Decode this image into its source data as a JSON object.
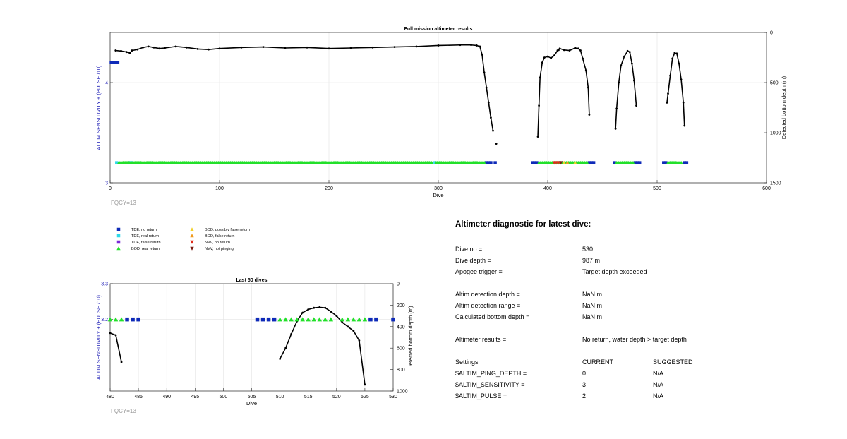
{
  "chart_data": [
    {
      "type": "scatter",
      "title": "Full mission altimeter results",
      "xlabel": "Dive",
      "ylabel": "ALTIM SENSITIVITY + (PULSE /10)",
      "y2label": "Detected bottom depth (m)",
      "xlim": [
        0,
        600
      ],
      "ylim": [
        3,
        4.5
      ],
      "y2lim": [
        1500,
        0
      ],
      "y2_reversed": true,
      "xticks": [
        "0",
        "100",
        "200",
        "300",
        "400",
        "500",
        "600"
      ],
      "yticks": [
        "3",
        "4"
      ],
      "y2ticks": [
        "0",
        "500",
        "1000",
        "1500"
      ],
      "grid": true,
      "annotation": "FQCY=13",
      "colors": {
        "ylabel": "#1a1ab4",
        "tde_no": "#0e2ab8",
        "tde_real": "#2fd8e8",
        "tde_false": "#7a2ad8",
        "bod_real": "#22e02a",
        "bod_possibly": "#f2d02a",
        "bod_false": "#f09a1e",
        "nvv_no": "#e02a1a",
        "nvv_not": "#7a1a10",
        "depth": "#000000"
      },
      "sensitivity_series": [
        {
          "name": "TDE, no return",
          "x": [
            1,
            2,
            3,
            4,
            5,
            6,
            7,
            344,
            346,
            348,
            352,
            386,
            388,
            390,
            438,
            440,
            442,
            461,
            480,
            482,
            484,
            506,
            508,
            525,
            527
          ],
          "y": [
            4.2,
            4.2,
            4.2,
            4.2,
            4.2,
            4.2,
            4.2,
            3.2,
            3.2,
            3.2,
            3.2,
            3.2,
            3.2,
            3.2,
            3.2,
            3.2,
            3.2,
            3.2,
            3.2,
            3.2,
            3.2,
            3.2,
            3.2,
            3.2,
            3.2
          ]
        },
        {
          "name": "TDE, real return",
          "x": [
            6,
            18,
            20,
            297
          ],
          "y": [
            3.2,
            3.2,
            3.2,
            3.2
          ]
        },
        {
          "name": "BOD, real return",
          "x_ranges": [
            [
              8,
              294
            ],
            [
              298,
              342
            ],
            [
              392,
              436
            ],
            [
              463,
              478
            ],
            [
              510,
              522
            ]
          ],
          "y": 3.2
        },
        {
          "name": "BOD, possibly false return",
          "x": [
            415,
            425
          ],
          "y": [
            3.2,
            3.2
          ]
        },
        {
          "name": "BOD, false return",
          "x": [
            418
          ],
          "y": [
            3.2
          ]
        },
        {
          "name": "NVV, no return",
          "x": [
            406,
            408,
            410
          ],
          "y": [
            3.2,
            3.2,
            3.2
          ]
        },
        {
          "name": "NVV, not pinging",
          "x": [
            412
          ],
          "y": [
            3.2
          ]
        }
      ],
      "depth_series": [
        {
          "name": "Detected bottom depth",
          "x": [
            5,
            10,
            15,
            18,
            20,
            25,
            30,
            35,
            40,
            45,
            50,
            60,
            70,
            80,
            90,
            100,
            120,
            140,
            160,
            180,
            200,
            220,
            240,
            260,
            280,
            300,
            320,
            330,
            335,
            338,
            340,
            342,
            344,
            346,
            348,
            350
          ],
          "y": [
            180,
            185,
            195,
            205,
            180,
            170,
            150,
            140,
            150,
            160,
            155,
            140,
            150,
            165,
            170,
            160,
            150,
            145,
            155,
            150,
            160,
            155,
            150,
            145,
            140,
            130,
            125,
            125,
            130,
            140,
            220,
            400,
            550,
            700,
            850,
            980
          ]
        },
        {
          "name": "Detected bottom depth",
          "x": [
            353
          ],
          "y": [
            1110
          ]
        },
        {
          "name": "Detected bottom depth",
          "x": [
            391,
            392,
            393,
            395,
            397,
            400,
            403,
            406,
            409,
            410
          ],
          "y": [
            1040,
            730,
            450,
            300,
            250,
            240,
            255,
            230,
            180,
            175
          ]
        },
        {
          "name": "Detected bottom depth",
          "x": [
            411,
            415,
            420,
            425,
            428,
            430,
            432,
            435,
            437,
            438
          ],
          "y": [
            160,
            175,
            180,
            155,
            160,
            180,
            260,
            380,
            550,
            820
          ]
        },
        {
          "name": "Detected bottom depth",
          "x": [
            462,
            463,
            465,
            467,
            470,
            473,
            475,
            477,
            479,
            481
          ],
          "y": [
            960,
            760,
            500,
            330,
            240,
            185,
            195,
            310,
            480,
            730
          ]
        },
        {
          "name": "Detected bottom depth",
          "x": [
            509,
            510,
            512,
            514,
            516,
            518,
            520,
            522,
            524,
            525
          ],
          "y": [
            700,
            610,
            430,
            260,
            205,
            210,
            310,
            470,
            700,
            930
          ]
        }
      ]
    },
    {
      "type": "scatter",
      "title": "Last 50 dives",
      "xlabel": "Dive",
      "ylabel": "ALTIM SENSITIVITY + (PULSE /10)",
      "y2label": "Detected bottom depth (m)",
      "xlim": [
        480,
        530
      ],
      "ylim": [
        3,
        3.3
      ],
      "y2lim": [
        1000,
        0
      ],
      "y2_reversed": true,
      "xticks": [
        "480",
        "485",
        "490",
        "495",
        "500",
        "505",
        "510",
        "515",
        "520",
        "525",
        "530"
      ],
      "yticks": [
        "3.2",
        "3.3"
      ],
      "y2ticks": [
        "0",
        "200",
        "400",
        "600",
        "800",
        "1000"
      ],
      "grid": true,
      "annotation": "FQCY=13",
      "sensitivity_series": [
        {
          "name": "TDE, no return",
          "x": [
            483,
            484,
            485,
            506,
            507,
            508,
            509,
            526,
            527,
            530
          ],
          "y": [
            3.2,
            3.2,
            3.2,
            3.2,
            3.2,
            3.2,
            3.2,
            3.2,
            3.2,
            3.2
          ]
        },
        {
          "name": "BOD, real return",
          "x": [
            480,
            481,
            482,
            510,
            511,
            512,
            513,
            514,
            515,
            516,
            517,
            518,
            519,
            521,
            522,
            523,
            524,
            525
          ],
          "y": [
            3.2,
            3.2,
            3.2,
            3.2,
            3.2,
            3.2,
            3.2,
            3.2,
            3.2,
            3.2,
            3.2,
            3.2,
            3.2,
            3.2,
            3.2,
            3.2,
            3.2,
            3.2
          ]
        }
      ],
      "depth_series": [
        {
          "name": "Detected bottom depth",
          "x": [
            480,
            481,
            482
          ],
          "y": [
            460,
            480,
            730
          ]
        },
        {
          "name": "Detected bottom depth",
          "x": [
            510,
            511,
            512,
            513,
            514,
            515,
            516,
            517,
            518,
            519,
            520,
            521,
            522,
            523,
            524,
            525
          ],
          "y": [
            700,
            600,
            470,
            350,
            270,
            240,
            225,
            220,
            225,
            260,
            300,
            360,
            400,
            440,
            530,
            940
          ]
        }
      ]
    }
  ],
  "legend": [
    {
      "label": "TDE, no return",
      "marker": "square",
      "color": "#0e2ab8"
    },
    {
      "label": "TDE, real return",
      "marker": "square",
      "color": "#2fd8e8"
    },
    {
      "label": "TDE, false return",
      "marker": "square",
      "color": "#7a2ad8"
    },
    {
      "label": "BOD, real return",
      "marker": "triangle-up",
      "color": "#22e02a"
    },
    {
      "label": "BOD, possibly false return",
      "marker": "triangle-up",
      "color": "#f2d02a"
    },
    {
      "label": "BOD, false return",
      "marker": "triangle-up",
      "color": "#f09a1e"
    },
    {
      "label": "NVV, no return",
      "marker": "triangle-down",
      "color": "#e02a1a"
    },
    {
      "label": "NVV, not pinging",
      "marker": "triangle-down",
      "color": "#7a1a10"
    }
  ],
  "diagnostic": {
    "title": "Altimeter diagnostic for latest dive:",
    "rows": [
      {
        "key": "Dive no =",
        "value": "530"
      },
      {
        "key": "Dive depth =",
        "value": "987 m"
      },
      {
        "key": "Apogee trigger =",
        "value": "Target depth exceeded"
      },
      {
        "key": "Altim detection depth =",
        "value": "NaN m"
      },
      {
        "key": "Altim detection range =",
        "value": "NaN m"
      },
      {
        "key": "Calculated bottom depth =",
        "value": "NaN m"
      },
      {
        "key": "Altimeter results =",
        "value": "No return, water depth > target depth"
      },
      {
        "key": "Settings",
        "value": "CURRENT",
        "suggested": "SUGGESTED"
      },
      {
        "key": "$ALTIM_PING_DEPTH =",
        "value": "0",
        "suggested": "N/A"
      },
      {
        "key": "$ALTIM_SENSITIVITY =",
        "value": "3",
        "suggested": "N/A"
      },
      {
        "key": "$ALTIM_PULSE =",
        "value": "2",
        "suggested": "N/A"
      }
    ]
  }
}
